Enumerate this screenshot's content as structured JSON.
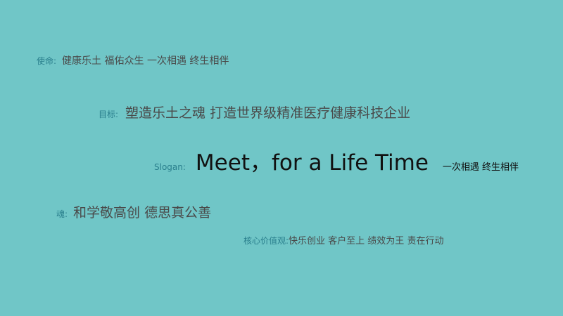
{
  "mission": {
    "label": "使命:",
    "text": "健康乐土 福佑众生 一次相遇 终生相伴"
  },
  "goal": {
    "label": "目标:",
    "text": "塑造乐土之魂 打造世界级精准医疗健康科技企业"
  },
  "slogan": {
    "label": "Slogan:",
    "text": "Meet，for a Life Time",
    "subtext": "一次相遇 终生相伴"
  },
  "soul": {
    "label": "魂:",
    "text": "和学敬高创 德思真公善"
  },
  "core_values": {
    "label": "核心价值观:",
    "text": "快乐创业 客户至上 绩效为王 责在行动"
  },
  "colors": {
    "background": "#70c6c7",
    "label": "#2a7f8d",
    "body_text": "#4a4a4a",
    "slogan_text": "#111111"
  }
}
